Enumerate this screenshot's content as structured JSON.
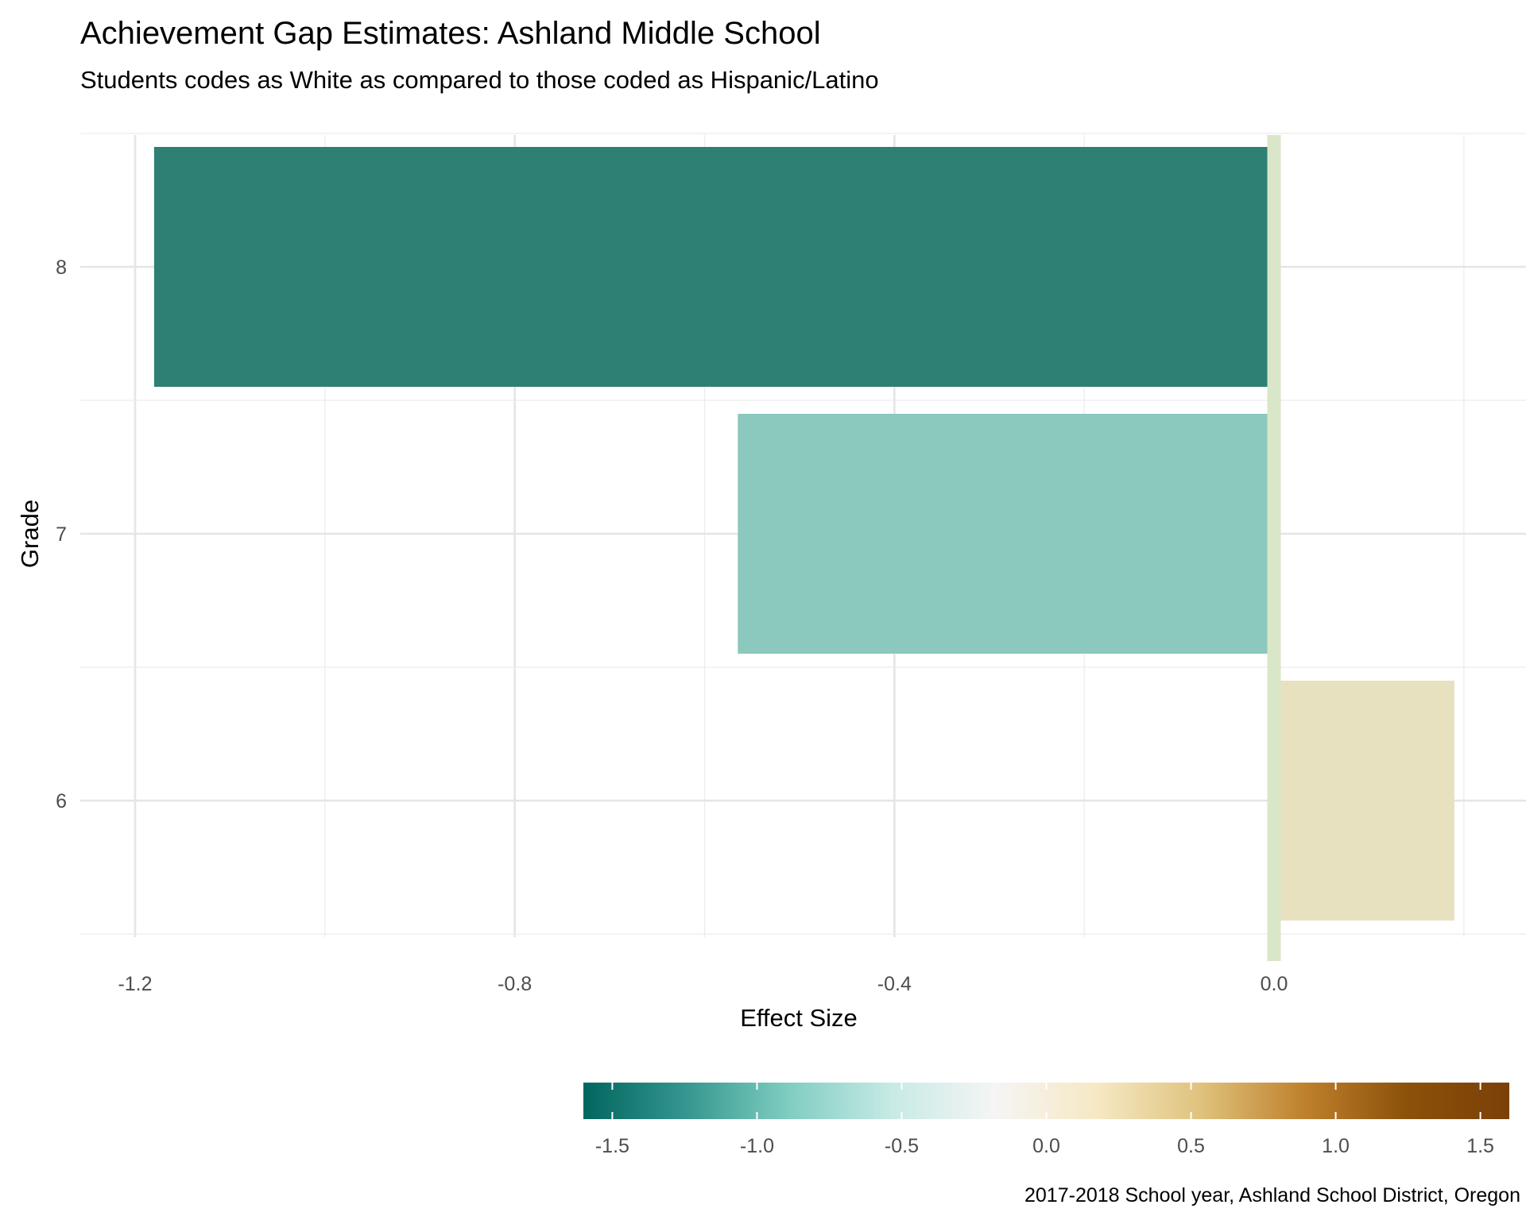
{
  "chart_data": {
    "type": "bar",
    "orientation": "horizontal",
    "title": "Achievement Gap Estimates: Ashland Middle School",
    "subtitle": "Students codes as White as compared to those coded as Hispanic/Latino",
    "xlabel": "Effect Size",
    "ylabel": "Grade",
    "caption": "2017-2018 School year, Ashland School District, Oregon",
    "categories": [
      "6",
      "7",
      "8"
    ],
    "values": [
      0.19,
      -0.565,
      -1.18
    ],
    "xlim": [
      -1.27,
      0.26
    ],
    "xticks": [
      -1.2,
      -0.8,
      -0.4,
      0.0
    ],
    "xtick_labels": [
      "-1.2",
      "-0.8",
      "-0.4",
      "0.0"
    ],
    "reference_line": {
      "x": 0.0,
      "color": "#d9e6c8"
    },
    "grid": true,
    "legend": {
      "type": "colorbar",
      "placement": "bottom-right",
      "range": [
        -1.6,
        1.6
      ],
      "ticks": [
        -1.5,
        -1.0,
        -0.5,
        0.0,
        0.5,
        1.0,
        1.5
      ],
      "tick_labels": [
        "-1.5",
        "-1.0",
        "-0.5",
        "0.0",
        "0.5",
        "1.0",
        "1.5"
      ],
      "palette": [
        "#01665e",
        "#35978f",
        "#80cdc1",
        "#c7eae5",
        "#f5f5f5",
        "#f6e8c3",
        "#dfc27d",
        "#bf812d",
        "#8c510a",
        "#7a4007"
      ]
    },
    "bar_colors": [
      "#e8e1bf",
      "#8bc8bd",
      "#2d8073"
    ]
  }
}
